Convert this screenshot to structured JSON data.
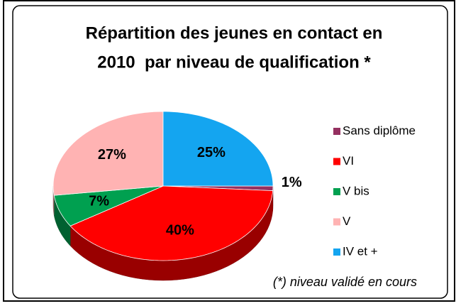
{
  "chart_data": {
    "type": "pie3d",
    "title": [
      "Répartition des jeunes en contact en",
      "2010  par niveau de qualification *"
    ],
    "categories": [
      "Sans diplôme",
      "VI",
      "V bis",
      "V",
      "IV et +"
    ],
    "values": [
      1,
      40,
      7,
      27,
      25
    ],
    "value_labels": [
      "1%",
      "40%",
      "7%",
      "27%",
      "25%"
    ],
    "colors": [
      "#953060",
      "#ff0000",
      "#00a050",
      "#ffb3b3",
      "#14a5f0"
    ],
    "legend": "right",
    "annotation": "(*) niveau validé en cours"
  }
}
